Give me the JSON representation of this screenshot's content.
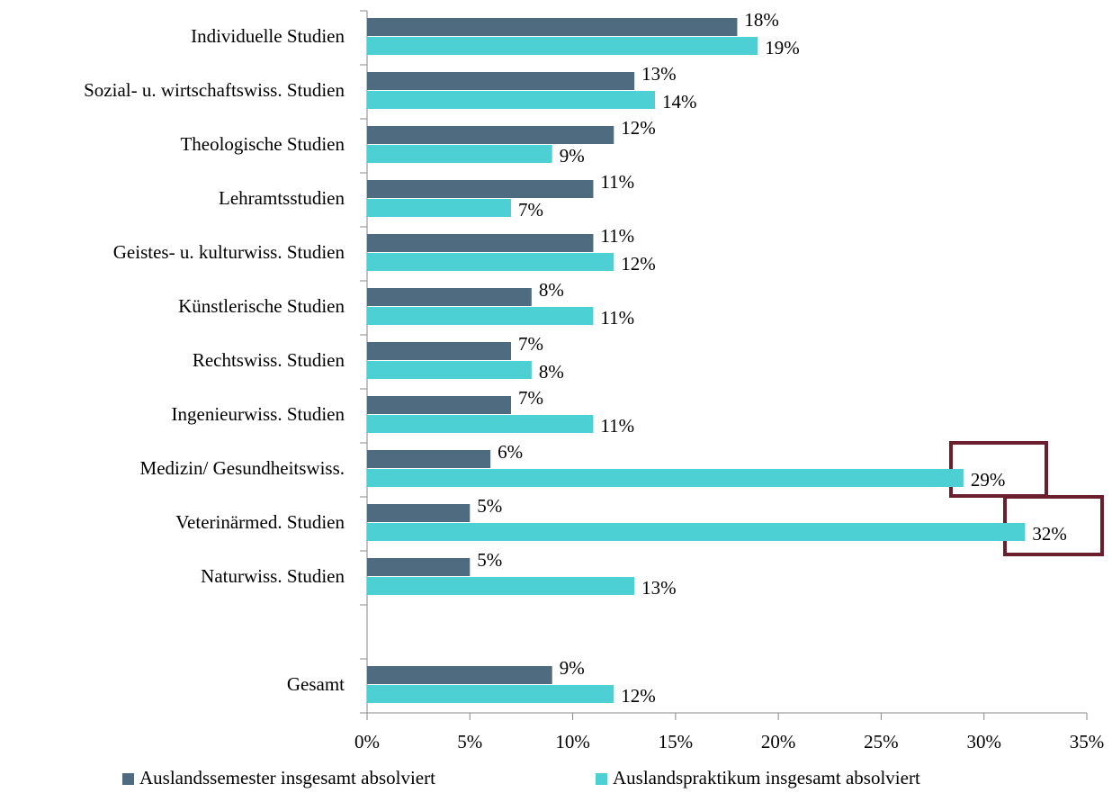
{
  "chart_data": {
    "type": "hbar",
    "categories": [
      "Individuelle Studien",
      "Sozial- u. wirtschaftswiss. Studien",
      "Theologische Studien",
      "Lehramtsstudien",
      "Geistes- u. kulturwiss. Studien",
      "Künstlerische Studien",
      "Rechtswiss. Studien",
      "Ingenieurwiss. Studien",
      "Medizin/ Gesundheitswiss.",
      "Veterinärmed. Studien",
      "Naturwiss. Studien",
      null,
      "Gesamt"
    ],
    "series": [
      {
        "name": "Auslandssemester insgesamt absolviert",
        "color": "#4f6b7f",
        "values": [
          18,
          13,
          12,
          11,
          11,
          8,
          7,
          7,
          6,
          5,
          5,
          null,
          9
        ],
        "value_labels": [
          "18%",
          "13%",
          "12%",
          "11%",
          "11%",
          "8%",
          "7%",
          "7%",
          "6%",
          "5%",
          "5%",
          null,
          "9%"
        ]
      },
      {
        "name": "Auslandspraktikum insgesamt absolviert",
        "color": "#4dd0d3",
        "values": [
          19,
          14,
          9,
          7,
          12,
          11,
          8,
          11,
          29,
          32,
          13,
          null,
          12
        ],
        "value_labels": [
          "19%",
          "14%",
          "9%",
          "7%",
          "12%",
          "11%",
          "8%",
          "11%",
          "29%",
          "32%",
          "13%",
          null,
          "12%"
        ]
      }
    ],
    "xlim": [
      0,
      35
    ],
    "xticks": [
      {
        "value": 0,
        "label": "0%"
      },
      {
        "value": 5,
        "label": "5%"
      },
      {
        "value": 10,
        "label": "10%"
      },
      {
        "value": 15,
        "label": "15%"
      },
      {
        "value": 20,
        "label": "20%"
      },
      {
        "value": 25,
        "label": "25%"
      },
      {
        "value": 30,
        "label": "30%"
      },
      {
        "value": 35,
        "label": "35%"
      }
    ],
    "legend": "bottom"
  }
}
